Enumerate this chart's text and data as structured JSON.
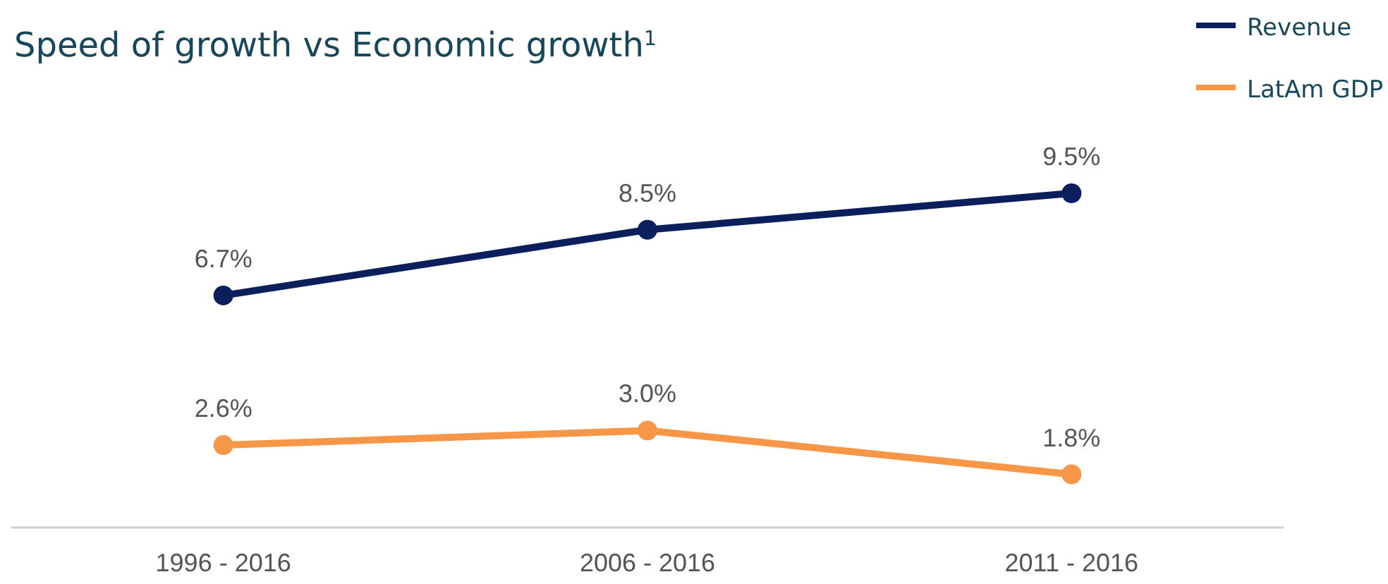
{
  "chart_data": {
    "type": "line",
    "title": "Speed of growth vs Economic growth$^{1}$",
    "categories": [
      "1996 - 2016",
      "2006 - 2016",
      "2011 - 2016"
    ],
    "series": [
      {
        "name": "Revenue",
        "color": "#0b1f5c",
        "values": [
          6.7,
          8.5,
          9.5
        ],
        "value_labels": [
          "6.7%",
          "8.5%",
          "9.5%"
        ]
      },
      {
        "name": "LatAm GDP",
        "color": "#f79646",
        "values": [
          2.6,
          3.0,
          1.8
        ],
        "value_labels": [
          "2.6%",
          "3.0%",
          "1.8%"
        ]
      }
    ],
    "legend": "top right",
    "marker": "circle",
    "grid": false
  }
}
